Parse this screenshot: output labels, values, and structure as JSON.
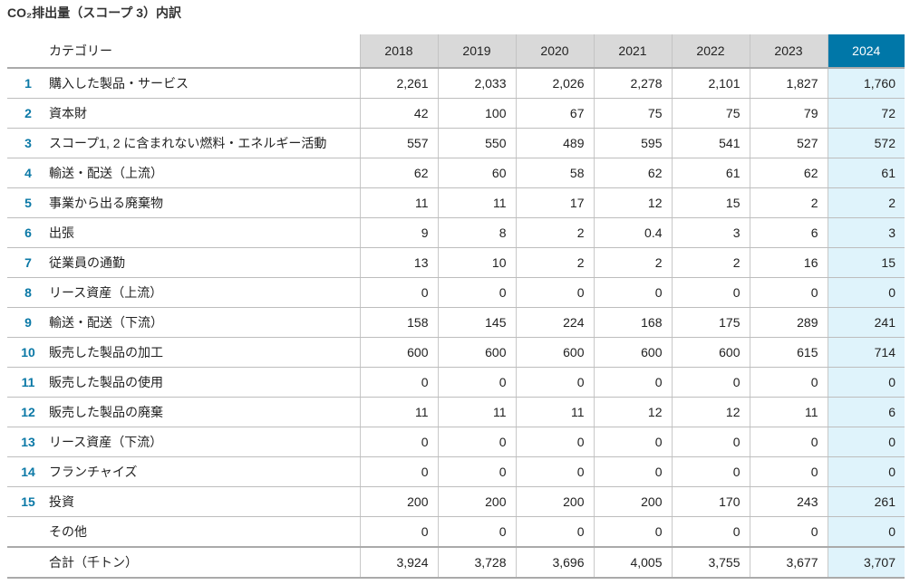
{
  "title": "CO₂排出量（スコープ 3）内訳",
  "header": {
    "category": "カテゴリー",
    "years": [
      "2018",
      "2019",
      "2020",
      "2021",
      "2022",
      "2023",
      "2024"
    ]
  },
  "highlight_color": "#0077a8",
  "rows": [
    {
      "no": "1",
      "name": "購入した製品・サービス",
      "values": [
        "2,261",
        "2,033",
        "2,026",
        "2,278",
        "2,101",
        "1,827",
        "1,760"
      ]
    },
    {
      "no": "2",
      "name": "資本財",
      "values": [
        "42",
        "100",
        "67",
        "75",
        "75",
        "79",
        "72"
      ]
    },
    {
      "no": "3",
      "name": "スコープ1, 2 に含まれない燃料・エネルギー活動",
      "values": [
        "557",
        "550",
        "489",
        "595",
        "541",
        "527",
        "572"
      ]
    },
    {
      "no": "4",
      "name": "輸送・配送（上流）",
      "values": [
        "62",
        "60",
        "58",
        "62",
        "61",
        "62",
        "61"
      ]
    },
    {
      "no": "5",
      "name": "事業から出る廃棄物",
      "values": [
        "11",
        "11",
        "17",
        "12",
        "15",
        "2",
        "2"
      ]
    },
    {
      "no": "6",
      "name": "出張",
      "values": [
        "9",
        "8",
        "2",
        "0.4",
        "3",
        "6",
        "3"
      ]
    },
    {
      "no": "7",
      "name": "従業員の通勤",
      "values": [
        "13",
        "10",
        "2",
        "2",
        "2",
        "16",
        "15"
      ]
    },
    {
      "no": "8",
      "name": "リース資産（上流）",
      "values": [
        "0",
        "0",
        "0",
        "0",
        "0",
        "0",
        "0"
      ]
    },
    {
      "no": "9",
      "name": "輸送・配送（下流）",
      "values": [
        "158",
        "145",
        "224",
        "168",
        "175",
        "289",
        "241"
      ]
    },
    {
      "no": "10",
      "name": "販売した製品の加工",
      "values": [
        "600",
        "600",
        "600",
        "600",
        "600",
        "615",
        "714"
      ]
    },
    {
      "no": "11",
      "name": "販売した製品の使用",
      "values": [
        "0",
        "0",
        "0",
        "0",
        "0",
        "0",
        "0"
      ]
    },
    {
      "no": "12",
      "name": "販売した製品の廃棄",
      "values": [
        "11",
        "11",
        "11",
        "12",
        "12",
        "11",
        "6"
      ]
    },
    {
      "no": "13",
      "name": "リース資産（下流）",
      "values": [
        "0",
        "0",
        "0",
        "0",
        "0",
        "0",
        "0"
      ]
    },
    {
      "no": "14",
      "name": "フランチャイズ",
      "values": [
        "0",
        "0",
        "0",
        "0",
        "0",
        "0",
        "0"
      ]
    },
    {
      "no": "15",
      "name": "投資",
      "values": [
        "200",
        "200",
        "200",
        "200",
        "170",
        "243",
        "261"
      ]
    },
    {
      "no": "",
      "name": "その他",
      "values": [
        "0",
        "0",
        "0",
        "0",
        "0",
        "0",
        "0"
      ]
    }
  ],
  "total": {
    "name": "合計（千トン）",
    "values": [
      "3,924",
      "3,728",
      "3,696",
      "4,005",
      "3,755",
      "3,677",
      "3,707"
    ]
  }
}
